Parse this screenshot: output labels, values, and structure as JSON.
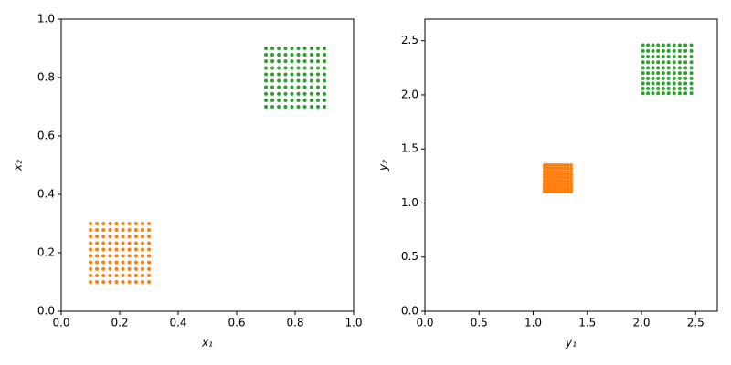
{
  "chart_data": [
    {
      "type": "scatter",
      "xlabel": "x₁",
      "ylabel": "x₂",
      "xlim": [
        0,
        1
      ],
      "ylim": [
        0,
        1
      ],
      "xticks": [
        {
          "value": 0,
          "label": "0.0"
        },
        0.2,
        0.4,
        0.6,
        0.8,
        {
          "value": 1,
          "label": "1.0"
        }
      ],
      "yticks": [
        {
          "value": 0,
          "label": "0.0"
        },
        0.2,
        0.4,
        0.6,
        0.8,
        {
          "value": 1,
          "label": "1.0"
        }
      ],
      "series": [
        {
          "color": "#ff7f0e",
          "x": [
            0.1,
            0.122,
            0.144,
            0.167,
            0.189,
            0.211,
            0.233,
            0.256,
            0.278,
            0.3,
            0.1,
            0.122,
            0.144,
            0.167,
            0.189,
            0.211,
            0.233,
            0.256,
            0.278,
            0.3,
            0.1,
            0.122,
            0.144,
            0.167,
            0.189,
            0.211,
            0.233,
            0.256,
            0.278,
            0.3,
            0.1,
            0.122,
            0.144,
            0.167,
            0.189,
            0.211,
            0.233,
            0.256,
            0.278,
            0.3,
            0.1,
            0.122,
            0.144,
            0.167,
            0.189,
            0.211,
            0.233,
            0.256,
            0.278,
            0.3,
            0.1,
            0.122,
            0.144,
            0.167,
            0.189,
            0.211,
            0.233,
            0.256,
            0.278,
            0.3,
            0.1,
            0.122,
            0.144,
            0.167,
            0.189,
            0.211,
            0.233,
            0.256,
            0.278,
            0.3,
            0.1,
            0.122,
            0.144,
            0.167,
            0.189,
            0.211,
            0.233,
            0.256,
            0.278,
            0.3,
            0.1,
            0.122,
            0.144,
            0.167,
            0.189,
            0.211,
            0.233,
            0.256,
            0.278,
            0.3,
            0.1,
            0.122,
            0.144,
            0.167,
            0.189,
            0.211,
            0.233,
            0.256,
            0.278,
            0.3
          ],
          "y": [
            0.1,
            0.1,
            0.1,
            0.1,
            0.1,
            0.1,
            0.1,
            0.1,
            0.1,
            0.1,
            0.122,
            0.122,
            0.122,
            0.122,
            0.122,
            0.122,
            0.122,
            0.122,
            0.122,
            0.122,
            0.144,
            0.144,
            0.144,
            0.144,
            0.144,
            0.144,
            0.144,
            0.144,
            0.144,
            0.144,
            0.167,
            0.167,
            0.167,
            0.167,
            0.167,
            0.167,
            0.167,
            0.167,
            0.167,
            0.167,
            0.189,
            0.189,
            0.189,
            0.189,
            0.189,
            0.189,
            0.189,
            0.189,
            0.189,
            0.189,
            0.211,
            0.211,
            0.211,
            0.211,
            0.211,
            0.211,
            0.211,
            0.211,
            0.211,
            0.211,
            0.233,
            0.233,
            0.233,
            0.233,
            0.233,
            0.233,
            0.233,
            0.233,
            0.233,
            0.233,
            0.256,
            0.256,
            0.256,
            0.256,
            0.256,
            0.256,
            0.256,
            0.256,
            0.256,
            0.256,
            0.278,
            0.278,
            0.278,
            0.278,
            0.278,
            0.278,
            0.278,
            0.278,
            0.278,
            0.278,
            0.3,
            0.3,
            0.3,
            0.3,
            0.3,
            0.3,
            0.3,
            0.3,
            0.3,
            0.3
          ]
        },
        {
          "color": "#2ca02c",
          "x": [
            0.7,
            0.722,
            0.744,
            0.767,
            0.789,
            0.811,
            0.833,
            0.856,
            0.878,
            0.9,
            0.7,
            0.722,
            0.744,
            0.767,
            0.789,
            0.811,
            0.833,
            0.856,
            0.878,
            0.9,
            0.7,
            0.722,
            0.744,
            0.767,
            0.789,
            0.811,
            0.833,
            0.856,
            0.878,
            0.9,
            0.7,
            0.722,
            0.744,
            0.767,
            0.789,
            0.811,
            0.833,
            0.856,
            0.878,
            0.9,
            0.7,
            0.722,
            0.744,
            0.767,
            0.789,
            0.811,
            0.833,
            0.856,
            0.878,
            0.9,
            0.7,
            0.722,
            0.744,
            0.767,
            0.789,
            0.811,
            0.833,
            0.856,
            0.878,
            0.9,
            0.7,
            0.722,
            0.744,
            0.767,
            0.789,
            0.811,
            0.833,
            0.856,
            0.878,
            0.9,
            0.7,
            0.722,
            0.744,
            0.767,
            0.789,
            0.811,
            0.833,
            0.856,
            0.878,
            0.9,
            0.7,
            0.722,
            0.744,
            0.767,
            0.789,
            0.811,
            0.833,
            0.856,
            0.878,
            0.9,
            0.7,
            0.722,
            0.744,
            0.767,
            0.789,
            0.811,
            0.833,
            0.856,
            0.878,
            0.9
          ],
          "y": [
            0.7,
            0.7,
            0.7,
            0.7,
            0.7,
            0.7,
            0.7,
            0.7,
            0.7,
            0.7,
            0.722,
            0.722,
            0.722,
            0.722,
            0.722,
            0.722,
            0.722,
            0.722,
            0.722,
            0.722,
            0.744,
            0.744,
            0.744,
            0.744,
            0.744,
            0.744,
            0.744,
            0.744,
            0.744,
            0.744,
            0.767,
            0.767,
            0.767,
            0.767,
            0.767,
            0.767,
            0.767,
            0.767,
            0.767,
            0.767,
            0.789,
            0.789,
            0.789,
            0.789,
            0.789,
            0.789,
            0.789,
            0.789,
            0.789,
            0.789,
            0.811,
            0.811,
            0.811,
            0.811,
            0.811,
            0.811,
            0.811,
            0.811,
            0.811,
            0.811,
            0.833,
            0.833,
            0.833,
            0.833,
            0.833,
            0.833,
            0.833,
            0.833,
            0.833,
            0.833,
            0.856,
            0.856,
            0.856,
            0.856,
            0.856,
            0.856,
            0.856,
            0.856,
            0.856,
            0.856,
            0.878,
            0.878,
            0.878,
            0.878,
            0.878,
            0.878,
            0.878,
            0.878,
            0.878,
            0.878,
            0.9,
            0.9,
            0.9,
            0.9,
            0.9,
            0.9,
            0.9,
            0.9,
            0.9,
            0.9
          ]
        }
      ]
    },
    {
      "type": "scatter",
      "xlabel": "y₁",
      "ylabel": "y₂",
      "xlim": [
        0,
        2.7
      ],
      "ylim": [
        0,
        2.7
      ],
      "xticks": [
        {
          "value": 0,
          "label": "0.0"
        },
        0.5,
        {
          "value": 1,
          "label": "1.0"
        },
        1.5,
        {
          "value": 2,
          "label": "2.0"
        },
        2.5
      ],
      "yticks": [
        {
          "value": 0,
          "label": "0.0"
        },
        0.5,
        {
          "value": 1,
          "label": "1.0"
        },
        1.5,
        {
          "value": 2,
          "label": "2.0"
        },
        2.5
      ],
      "series": [
        {
          "color": "#ff7f0e",
          "x": [
            1.105,
            1.13,
            1.155,
            1.181,
            1.208,
            1.235,
            1.263,
            1.291,
            1.32,
            1.35,
            1.105,
            1.13,
            1.155,
            1.181,
            1.208,
            1.235,
            1.263,
            1.291,
            1.32,
            1.35,
            1.105,
            1.13,
            1.155,
            1.181,
            1.208,
            1.235,
            1.263,
            1.291,
            1.32,
            1.35,
            1.105,
            1.13,
            1.155,
            1.181,
            1.208,
            1.235,
            1.263,
            1.291,
            1.32,
            1.35,
            1.105,
            1.13,
            1.155,
            1.181,
            1.208,
            1.235,
            1.263,
            1.291,
            1.32,
            1.35,
            1.105,
            1.13,
            1.155,
            1.181,
            1.208,
            1.235,
            1.263,
            1.291,
            1.32,
            1.35,
            1.105,
            1.13,
            1.155,
            1.181,
            1.208,
            1.235,
            1.263,
            1.291,
            1.32,
            1.35,
            1.105,
            1.13,
            1.155,
            1.181,
            1.208,
            1.235,
            1.263,
            1.291,
            1.32,
            1.35,
            1.105,
            1.13,
            1.155,
            1.181,
            1.208,
            1.235,
            1.263,
            1.291,
            1.32,
            1.35,
            1.105,
            1.13,
            1.155,
            1.181,
            1.208,
            1.235,
            1.263,
            1.291,
            1.32,
            1.35
          ],
          "y": [
            1.105,
            1.105,
            1.105,
            1.105,
            1.105,
            1.105,
            1.105,
            1.105,
            1.105,
            1.105,
            1.13,
            1.13,
            1.13,
            1.13,
            1.13,
            1.13,
            1.13,
            1.13,
            1.13,
            1.13,
            1.155,
            1.155,
            1.155,
            1.155,
            1.155,
            1.155,
            1.155,
            1.155,
            1.155,
            1.155,
            1.181,
            1.181,
            1.181,
            1.181,
            1.181,
            1.181,
            1.181,
            1.181,
            1.181,
            1.181,
            1.208,
            1.208,
            1.208,
            1.208,
            1.208,
            1.208,
            1.208,
            1.208,
            1.208,
            1.208,
            1.235,
            1.235,
            1.235,
            1.235,
            1.235,
            1.235,
            1.235,
            1.235,
            1.235,
            1.235,
            1.263,
            1.263,
            1.263,
            1.263,
            1.263,
            1.263,
            1.263,
            1.263,
            1.263,
            1.263,
            1.291,
            1.291,
            1.291,
            1.291,
            1.291,
            1.291,
            1.291,
            1.291,
            1.291,
            1.291,
            1.32,
            1.32,
            1.32,
            1.32,
            1.32,
            1.32,
            1.32,
            1.32,
            1.32,
            1.32,
            1.35,
            1.35,
            1.35,
            1.35,
            1.35,
            1.35,
            1.35,
            1.35,
            1.35,
            1.35
          ]
        },
        {
          "color": "#2ca02c",
          "x": [
            2.014,
            2.059,
            2.105,
            2.153,
            2.201,
            2.25,
            2.301,
            2.353,
            2.406,
            2.46,
            2.014,
            2.059,
            2.105,
            2.153,
            2.201,
            2.25,
            2.301,
            2.353,
            2.406,
            2.46,
            2.014,
            2.059,
            2.105,
            2.153,
            2.201,
            2.25,
            2.301,
            2.353,
            2.406,
            2.46,
            2.014,
            2.059,
            2.105,
            2.153,
            2.201,
            2.25,
            2.301,
            2.353,
            2.406,
            2.46,
            2.014,
            2.059,
            2.105,
            2.153,
            2.201,
            2.25,
            2.301,
            2.353,
            2.406,
            2.46,
            2.014,
            2.059,
            2.105,
            2.153,
            2.201,
            2.25,
            2.301,
            2.353,
            2.406,
            2.46,
            2.014,
            2.059,
            2.105,
            2.153,
            2.201,
            2.25,
            2.301,
            2.353,
            2.406,
            2.46,
            2.014,
            2.059,
            2.105,
            2.153,
            2.201,
            2.25,
            2.301,
            2.353,
            2.406,
            2.46,
            2.014,
            2.059,
            2.105,
            2.153,
            2.201,
            2.25,
            2.301,
            2.353,
            2.406,
            2.46,
            2.014,
            2.059,
            2.105,
            2.153,
            2.201,
            2.25,
            2.301,
            2.353,
            2.406,
            2.46
          ],
          "y": [
            2.014,
            2.014,
            2.014,
            2.014,
            2.014,
            2.014,
            2.014,
            2.014,
            2.014,
            2.014,
            2.059,
            2.059,
            2.059,
            2.059,
            2.059,
            2.059,
            2.059,
            2.059,
            2.059,
            2.059,
            2.105,
            2.105,
            2.105,
            2.105,
            2.105,
            2.105,
            2.105,
            2.105,
            2.105,
            2.105,
            2.153,
            2.153,
            2.153,
            2.153,
            2.153,
            2.153,
            2.153,
            2.153,
            2.153,
            2.153,
            2.201,
            2.201,
            2.201,
            2.201,
            2.201,
            2.201,
            2.201,
            2.201,
            2.201,
            2.201,
            2.25,
            2.25,
            2.25,
            2.25,
            2.25,
            2.25,
            2.25,
            2.25,
            2.25,
            2.25,
            2.301,
            2.301,
            2.301,
            2.301,
            2.301,
            2.301,
            2.301,
            2.301,
            2.301,
            2.301,
            2.353,
            2.353,
            2.353,
            2.353,
            2.353,
            2.353,
            2.353,
            2.353,
            2.353,
            2.353,
            2.406,
            2.406,
            2.406,
            2.406,
            2.406,
            2.406,
            2.406,
            2.406,
            2.406,
            2.406,
            2.46,
            2.46,
            2.46,
            2.46,
            2.46,
            2.46,
            2.46,
            2.46,
            2.46,
            2.46
          ]
        }
      ]
    }
  ]
}
